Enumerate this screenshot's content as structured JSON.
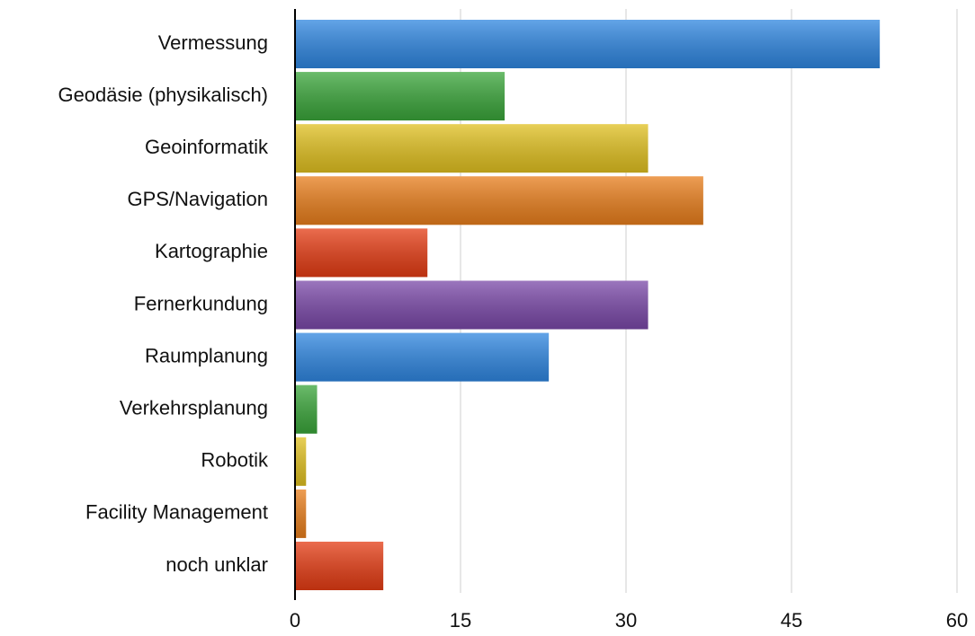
{
  "chart_data": {
    "type": "hbar",
    "categories": [
      "Vermessung",
      "Geodäsie (physikalisch)",
      "Geoinformatik",
      "GPS/Navigation",
      "Kartographie",
      "Fernerkundung",
      "Raumplanung",
      "Verkehrsplanung",
      "Robotik",
      "Facility Management",
      "noch unklar"
    ],
    "values": [
      53,
      19,
      32,
      37,
      12,
      32,
      23,
      2,
      1,
      1,
      8
    ],
    "colors": [
      "#2f86e0",
      "#3aa53a",
      "#e0c020",
      "#e87e1c",
      "#e43c14",
      "#7a48a8",
      "#2f86e0",
      "#3aa53a",
      "#e0c020",
      "#e87e1c",
      "#e43c14"
    ],
    "xlim": [
      0,
      60
    ],
    "xticks": [
      0,
      15,
      30,
      45,
      60
    ],
    "grid": true
  }
}
